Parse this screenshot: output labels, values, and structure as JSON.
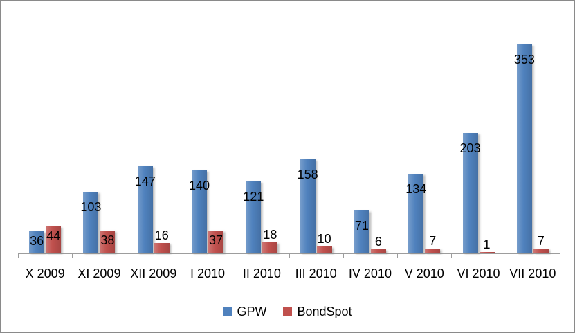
{
  "chart_data": {
    "type": "bar",
    "title": "",
    "xlabel": "",
    "ylabel": "",
    "categories": [
      "X 2009",
      "XI 2009",
      "XII 2009",
      "I 2010",
      "II 2010",
      "III 2010",
      "IV 2010",
      "V 2010",
      "VI 2010",
      "VII 2010"
    ],
    "series": [
      {
        "name": "GPW",
        "color": "#4F81BD",
        "values": [
          36,
          103,
          147,
          140,
          121,
          158,
          71,
          134,
          203,
          353
        ]
      },
      {
        "name": "BondSpot",
        "color": "#C0504D",
        "values": [
          44,
          38,
          16,
          37,
          18,
          10,
          6,
          7,
          1,
          7
        ]
      }
    ],
    "data_labels": true,
    "grid": false,
    "y_axis_visible": false,
    "legend_position": "bottom",
    "axis_color": "#9D9D9D",
    "text_color": "#000000",
    "background_color": "#FFFFFF",
    "border_color": "#8A8A8A"
  }
}
